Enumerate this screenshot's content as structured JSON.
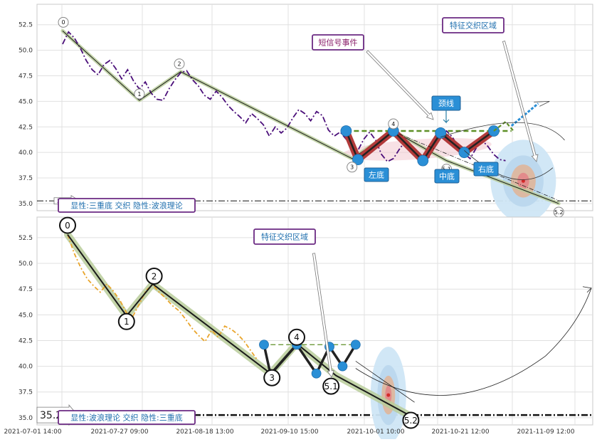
{
  "chart_data": [
    {
      "type": "line",
      "panel": "top",
      "ylim": [
        34.3,
        54.5
      ],
      "y_ticks": [
        "52.5",
        "50.0",
        "47.5",
        "45.0",
        "42.5",
        "40.0",
        "37.5",
        "35.0"
      ],
      "y_tick_values": [
        52.5,
        50.0,
        47.5,
        45.0,
        42.5,
        40.0,
        37.5,
        35.0
      ],
      "grid": true,
      "series_color": "#4b0f7a",
      "price_series": [
        50.6,
        51.8,
        51.2,
        50.2,
        49.0,
        48.1,
        47.6,
        48.6,
        49.0,
        48.2,
        47.2,
        48.1,
        47.0,
        46.2,
        46.9,
        45.8,
        45.2,
        45.1,
        46.2,
        47.1,
        47.8,
        48.0,
        47.1,
        46.5,
        45.6,
        45.2,
        46.0,
        45.4,
        44.6,
        44.0,
        43.5,
        42.9,
        43.8,
        43.3,
        42.7,
        41.6,
        42.5,
        41.9,
        42.4,
        43.4,
        44.2,
        43.8,
        43.1,
        44.0,
        43.6,
        42.2,
        41.6,
        42.0,
        41.3,
        40.5,
        40.2,
        41.3,
        42.0,
        41.2,
        39.8,
        39.1,
        39.4,
        40.3,
        41.1,
        40.7,
        39.6,
        39.1,
        39.5,
        40.6,
        41.4,
        42.1,
        41.5,
        40.5,
        39.9,
        39.4,
        40.4,
        41.2,
        40.6,
        39.8,
        39.3,
        39.2
      ],
      "wave_points": [
        {
          "label": "0",
          "x": 0,
          "y": 51.9
        },
        {
          "label": "1",
          "x": 13,
          "y": 45.1
        },
        {
          "label": "2",
          "x": 20,
          "y": 47.9
        },
        {
          "label": "3",
          "x": 49,
          "y": 39.4
        },
        {
          "label": "4",
          "x": 56,
          "y": 42.1
        },
        {
          "label": "5.1",
          "x": 65,
          "y": 39.2
        },
        {
          "label": "5.2",
          "x": 84,
          "y": 35.0
        }
      ],
      "triple_bottom_points": [
        {
          "x": 48,
          "y": 42.1
        },
        {
          "x": 50,
          "y": 39.3
        },
        {
          "x": 56,
          "y": 42.1
        },
        {
          "x": 61,
          "y": 39.2
        },
        {
          "x": 64,
          "y": 41.9
        },
        {
          "x": 68,
          "y": 40.0
        },
        {
          "x": 73,
          "y": 42.1
        }
      ],
      "neckline": {
        "y": 42.1,
        "x_start": 48,
        "x_end": 76
      },
      "breakout_arrow": {
        "from": [
          76,
          42.6
        ],
        "to": [
          81,
          45.0
        ]
      },
      "support_level": 35.26,
      "support_label": "35.26",
      "feature_zone_center": {
        "x": 78,
        "y": 37.2
      },
      "labels": {
        "left_bottom": "左底",
        "middle_bottom": "中底",
        "right_bottom": "右底",
        "neckline": "颈线",
        "short_signal": "短信号事件",
        "feature_zone": "特征交织区域",
        "legend": "显性:三重底 交织 隐性:波浪理论"
      }
    },
    {
      "type": "line",
      "panel": "bottom",
      "ylim": [
        34.3,
        54.5
      ],
      "y_ticks": [
        "52.5",
        "50.0",
        "47.5",
        "45.0",
        "42.5",
        "40.0",
        "37.5",
        "35.0"
      ],
      "y_tick_values": [
        52.5,
        50.0,
        47.5,
        45.0,
        42.5,
        40.0,
        37.5,
        35.0
      ],
      "x_ticks": [
        "2021-07-01 14:00",
        "2021-07-27 09:00",
        "2021-08-18 13:00",
        "2021-09-10 15:00",
        "2021-10-01 10:00",
        "2021-10-21 12:00",
        "2021-11-09 12:00"
      ],
      "grid": true,
      "series_color": "#e9a52b",
      "price_series": [
        52.8,
        51.0,
        49.6,
        48.5,
        47.8,
        47.2,
        48.0,
        47.3,
        46.4,
        45.2,
        44.9,
        46.1,
        47.4,
        47.9,
        47.2,
        46.6,
        45.9,
        45.4,
        44.6,
        43.7,
        43.0,
        42.4,
        43.5,
        42.8,
        43.9,
        43.6,
        43.1,
        42.4,
        41.5,
        40.6
      ],
      "wave_points": [
        {
          "label": "0",
          "x": 0,
          "y": 52.8
        },
        {
          "label": "1",
          "x": 9,
          "y": 44.9
        },
        {
          "label": "2",
          "x": 13,
          "y": 48.0
        },
        {
          "label": "3",
          "x": 31,
          "y": 39.3
        },
        {
          "label": "4",
          "x": 35,
          "y": 42.2
        },
        {
          "label": "5.1",
          "x": 41,
          "y": 39.1
        },
        {
          "label": "5.2",
          "x": 52,
          "y": 35.3
        }
      ],
      "triple_bottom_points": [
        {
          "x": 30,
          "y": 42.1
        },
        {
          "x": 31,
          "y": 39.2
        },
        {
          "x": 35,
          "y": 42.1
        },
        {
          "x": 38,
          "y": 39.3
        },
        {
          "x": 40,
          "y": 41.9
        },
        {
          "x": 42,
          "y": 40.0
        },
        {
          "x": 44,
          "y": 42.1
        }
      ],
      "neckline": {
        "y": 42.1,
        "x_start": 31,
        "x_end": 44
      },
      "support_level": 35.26,
      "support_label": "35.26",
      "feature_zone_center": {
        "x": 49,
        "y": 37.2
      },
      "labels": {
        "feature_zone": "特征交织区域",
        "legend": "显性:波浪理论 交织 隐性:三重底"
      }
    }
  ]
}
